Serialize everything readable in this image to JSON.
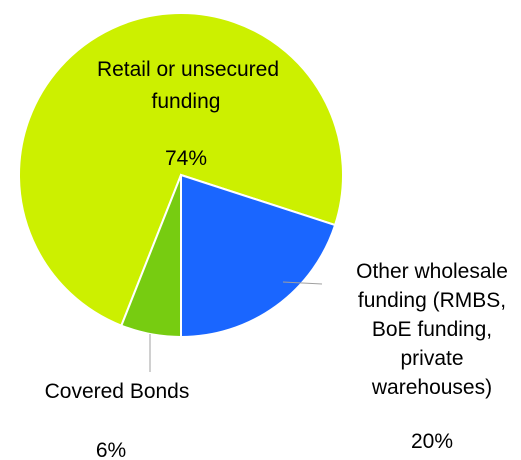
{
  "chart_data": {
    "type": "pie",
    "slices": [
      {
        "lines": [
          "Retail or unsecured",
          "funding"
        ],
        "pct_label": "74%",
        "value": 74,
        "color": "#ccf000"
      },
      {
        "lines": [
          "Other wholesale",
          "funding (RMBS,",
          "BoE funding,",
          "private",
          "warehouses)"
        ],
        "pct_label": "20%",
        "value": 20,
        "color": "#1a66ff"
      },
      {
        "lines": [
          "Covered Bonds"
        ],
        "pct_label": "6%",
        "value": 6,
        "color": "#77cc11"
      }
    ]
  }
}
